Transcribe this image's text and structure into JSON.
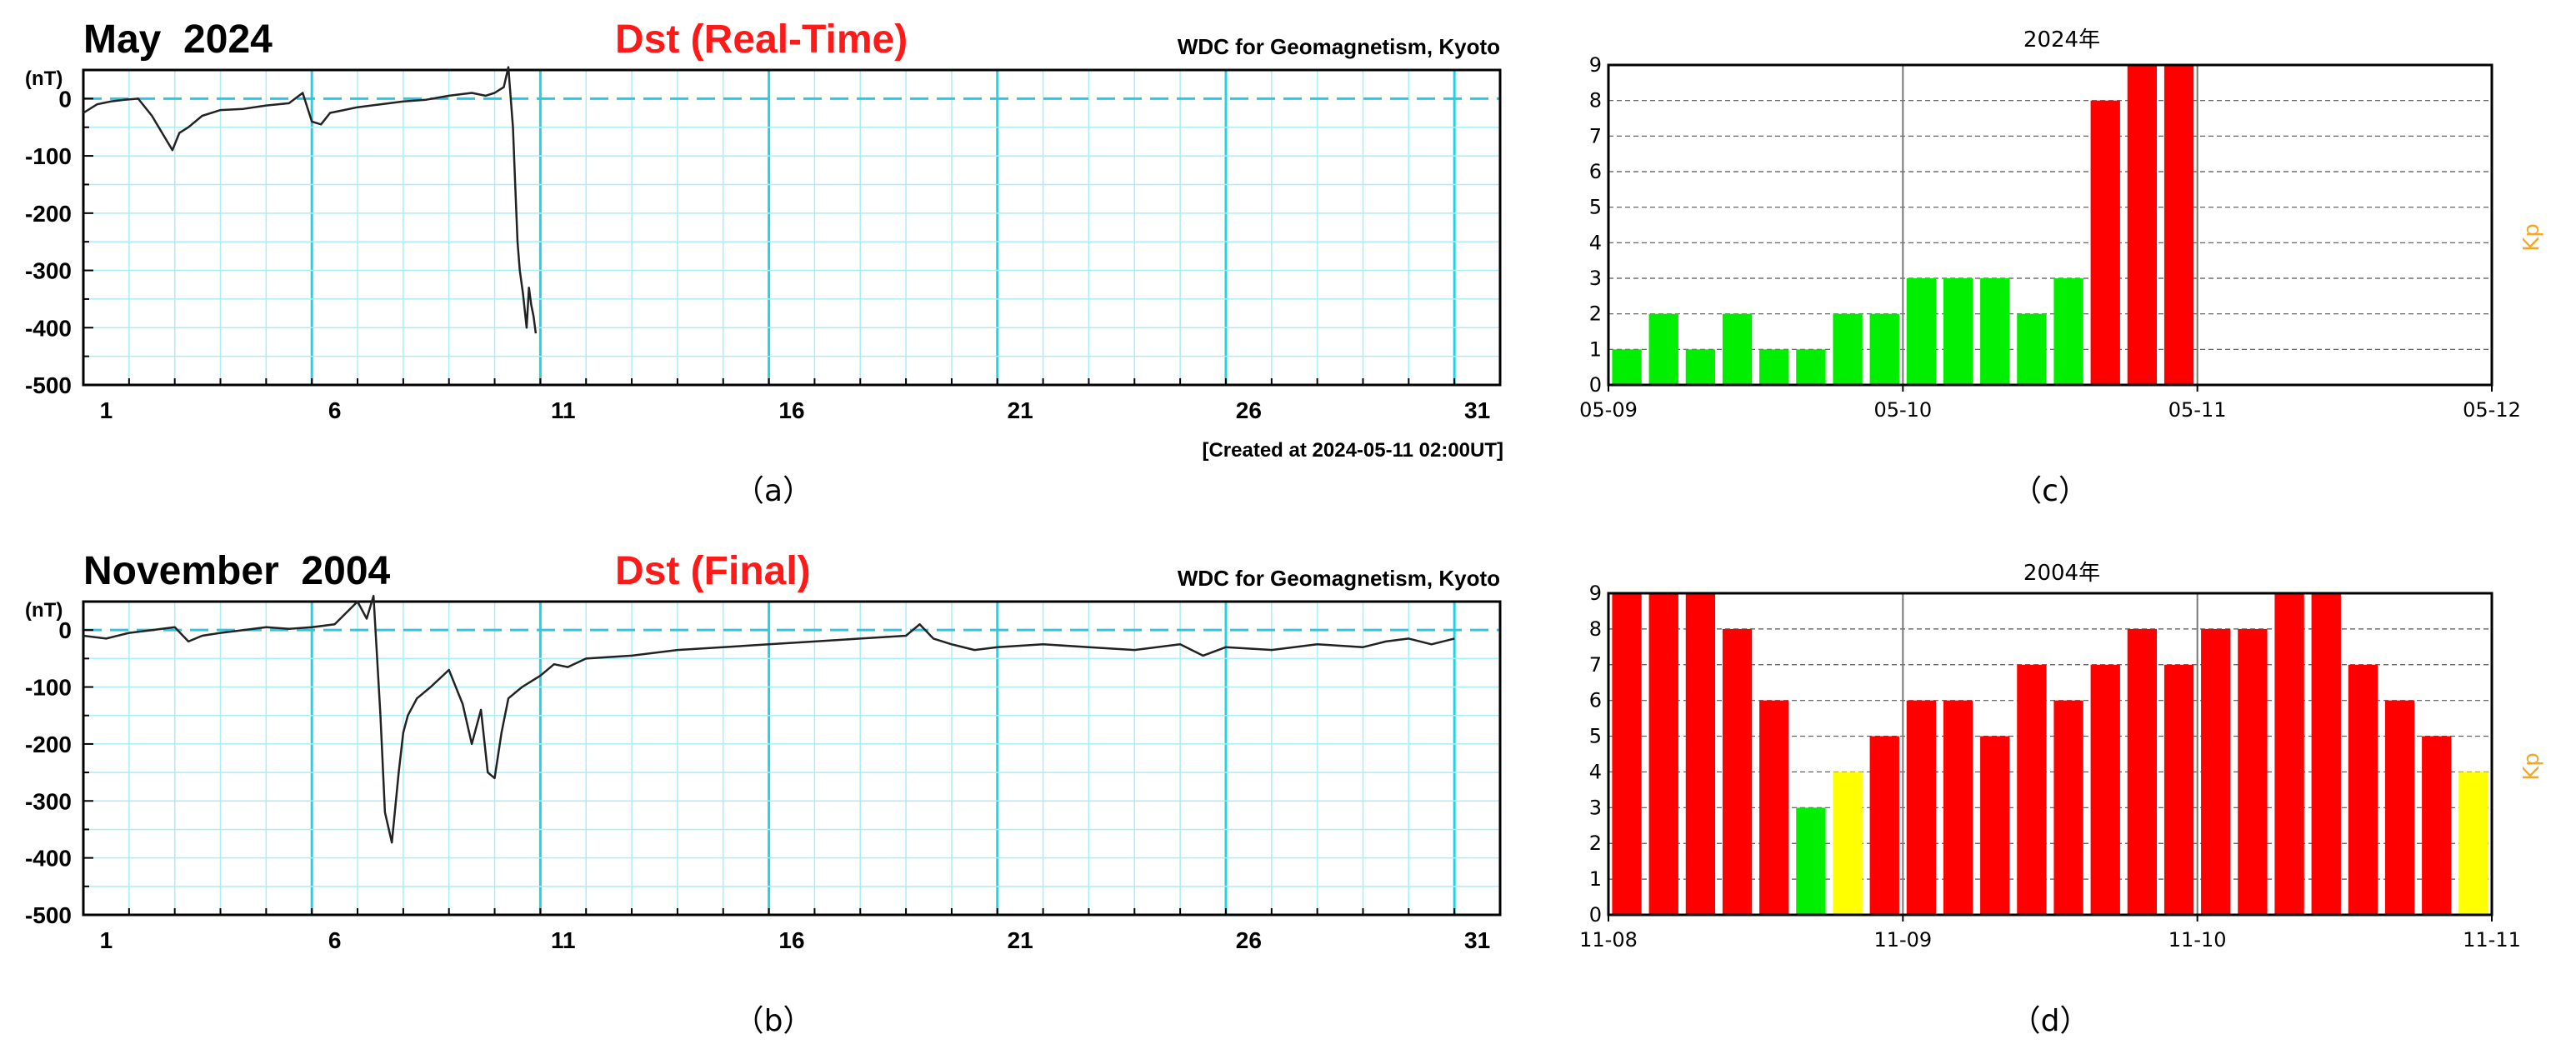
{
  "colors": {
    "dst_grid": "#a8eef8",
    "dst_major_grid": "#22d3e6",
    "dst_zero": "#30c6dc",
    "dst_line": "#222222",
    "dst_kind": "#ff1a1a",
    "kp_low": "#00ee00",
    "kp_mid": "#ffff00",
    "kp_high": "#ff0000",
    "kp_label": "#f5a623"
  },
  "panel_labels": {
    "a": "（a）",
    "b": "（b）",
    "c": "（c）",
    "d": "（d）"
  },
  "chart_data": [
    {
      "id": "a",
      "type": "line",
      "title": "May  2024",
      "kind": "Dst (Real-Time)",
      "source": "WDC for Geomagnetism, Kyoto",
      "ylabel": "(nT)",
      "footer": "[Created at 2024-05-11 02:00UT]",
      "x_ticks": [
        "1",
        "6",
        "11",
        "16",
        "21",
        "26",
        "31"
      ],
      "y_ticks": [
        "0",
        "-100",
        "-200",
        "-300",
        "-400",
        "-500"
      ],
      "xlim": [
        1,
        32
      ],
      "ylim": [
        -500,
        50
      ],
      "grid": true,
      "series": [
        {
          "x": [
            1,
            1.3,
            1.6,
            1.9,
            2.2,
            2.5,
            2.8,
            2.95,
            3.1,
            3.3,
            3.6,
            4,
            4.5,
            5,
            5.5,
            5.8,
            6.0,
            6.2,
            6.4,
            6.7,
            7,
            7.5,
            8,
            8.5,
            9,
            9.5,
            9.8,
            10,
            10.2,
            10.3,
            10.4,
            10.45,
            10.5,
            10.55,
            10.62,
            10.7,
            10.75,
            10.8,
            10.85,
            10.9
          ],
          "y": [
            -25,
            -10,
            -5,
            -2,
            0,
            -30,
            -70,
            -90,
            -60,
            -50,
            -30,
            -20,
            -18,
            -12,
            -8,
            10,
            -40,
            -45,
            -25,
            -20,
            -15,
            -10,
            -5,
            -2,
            5,
            10,
            5,
            10,
            20,
            55,
            -50,
            -150,
            -250,
            -300,
            -340,
            -400,
            -330,
            -360,
            -380,
            -410
          ]
        }
      ]
    },
    {
      "id": "b",
      "type": "line",
      "title": "November  2004",
      "kind": "Dst (Final)",
      "source": "WDC for Geomagnetism, Kyoto",
      "ylabel": "(nT)",
      "x_ticks": [
        "1",
        "6",
        "11",
        "16",
        "21",
        "26",
        "31"
      ],
      "y_ticks": [
        "0",
        "-100",
        "-200",
        "-300",
        "-400",
        "-500"
      ],
      "xlim": [
        1,
        32
      ],
      "ylim": [
        -500,
        50
      ],
      "grid": true,
      "series": [
        {
          "x": [
            1,
            1.5,
            2,
            2.5,
            3,
            3.3,
            3.6,
            4,
            4.5,
            5,
            5.5,
            6,
            6.5,
            7,
            7.2,
            7.35,
            7.5,
            7.6,
            7.75,
            7.9,
            8.0,
            8.1,
            8.3,
            8.6,
            9,
            9.3,
            9.5,
            9.7,
            9.85,
            10.0,
            10.15,
            10.3,
            10.6,
            11,
            11.3,
            11.6,
            12,
            13,
            14,
            15,
            16,
            17,
            18,
            19,
            19.3,
            19.6,
            20,
            20.5,
            21,
            22,
            23,
            24,
            25,
            25.5,
            26,
            27,
            28,
            29,
            29.5,
            30,
            30.5,
            31
          ],
          "y": [
            -10,
            -15,
            -5,
            0,
            5,
            -20,
            -10,
            -5,
            0,
            5,
            2,
            5,
            10,
            50,
            20,
            60,
            -150,
            -320,
            -373,
            -250,
            -180,
            -150,
            -120,
            -100,
            -70,
            -130,
            -200,
            -140,
            -250,
            -260,
            -180,
            -120,
            -100,
            -80,
            -60,
            -65,
            -50,
            -45,
            -35,
            -30,
            -25,
            -20,
            -15,
            -10,
            10,
            -15,
            -25,
            -35,
            -30,
            -25,
            -30,
            -35,
            -25,
            -45,
            -30,
            -35,
            -25,
            -30,
            -20,
            -15,
            -25,
            -15
          ]
        }
      ]
    },
    {
      "id": "c",
      "type": "bar",
      "title": "2024年",
      "ylabel": "Kp",
      "y_ticks": [
        "0",
        "1",
        "2",
        "3",
        "4",
        "5",
        "6",
        "7",
        "8",
        "9"
      ],
      "x_ticks": [
        "05-09",
        "05-10",
        "05-11",
        "05-12"
      ],
      "ylim": [
        0,
        9
      ],
      "bars_per_day": 8,
      "days": 3,
      "grid": true,
      "values": [
        1,
        2,
        1,
        2,
        1,
        1,
        2,
        2,
        3,
        3,
        3,
        2,
        3,
        8,
        9,
        9
      ],
      "color_key": [
        "low",
        "low",
        "low",
        "low",
        "low",
        "low",
        "low",
        "low",
        "low",
        "low",
        "low",
        "low",
        "low",
        "high",
        "high",
        "high"
      ]
    },
    {
      "id": "d",
      "type": "bar",
      "title": "2004年",
      "ylabel": "Kp",
      "y_ticks": [
        "0",
        "1",
        "2",
        "3",
        "4",
        "5",
        "6",
        "7",
        "8",
        "9"
      ],
      "x_ticks": [
        "11-08",
        "11-09",
        "11-10",
        "11-11"
      ],
      "ylim": [
        0,
        9
      ],
      "bars_per_day": 8,
      "days": 3,
      "grid": true,
      "values": [
        9,
        9,
        9,
        8,
        6,
        3,
        4,
        5,
        6,
        6,
        5,
        7,
        6,
        7,
        8,
        7,
        8,
        8,
        9,
        9,
        7,
        6,
        5,
        4
      ],
      "color_key": [
        "high",
        "high",
        "high",
        "high",
        "high",
        "low",
        "mid",
        "high",
        "high",
        "high",
        "high",
        "high",
        "high",
        "high",
        "high",
        "high",
        "high",
        "high",
        "high",
        "high",
        "high",
        "high",
        "high",
        "mid"
      ]
    }
  ]
}
